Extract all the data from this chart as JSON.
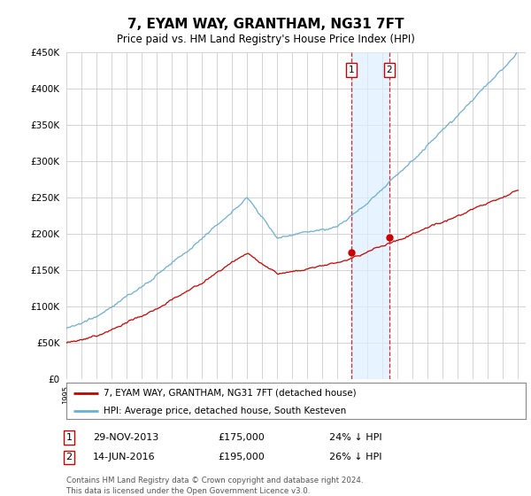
{
  "title": "7, EYAM WAY, GRANTHAM, NG31 7FT",
  "subtitle": "Price paid vs. HM Land Registry's House Price Index (HPI)",
  "ylim": [
    0,
    450000
  ],
  "xlim_start": 1995.0,
  "xlim_end": 2025.5,
  "purchase1_date": 2013.91,
  "purchase1_price": 175000,
  "purchase2_date": 2016.45,
  "purchase2_price": 195000,
  "hpi_color": "#6baed6",
  "price_color": "#cc0000",
  "shading_color": "#ddeeff",
  "legend_house_label": "7, EYAM WAY, GRANTHAM, NG31 7FT (detached house)",
  "legend_hpi_label": "HPI: Average price, detached house, South Kesteven",
  "table_row1": [
    "1",
    "29-NOV-2013",
    "£175,000",
    "24% ↓ HPI"
  ],
  "table_row2": [
    "2",
    "14-JUN-2016",
    "£195,000",
    "26% ↓ HPI"
  ],
  "footer": "Contains HM Land Registry data © Crown copyright and database right 2024.\nThis data is licensed under the Open Government Licence v3.0.",
  "background_color": "#ffffff",
  "grid_color": "#cccccc"
}
